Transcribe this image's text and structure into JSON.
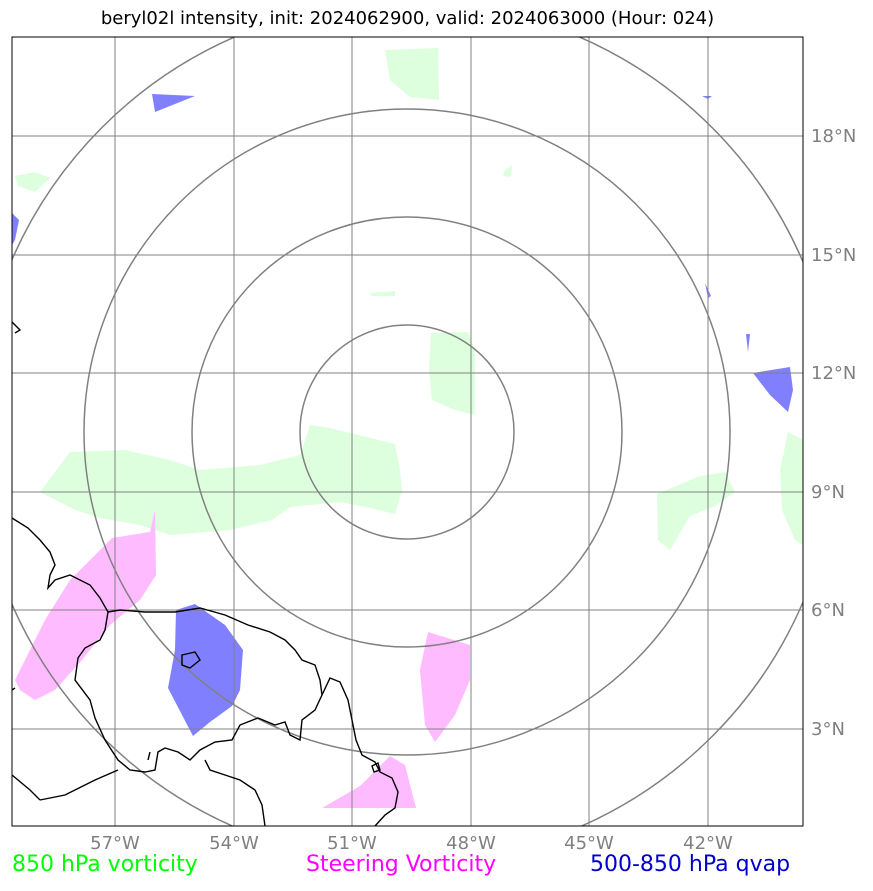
{
  "title": "beryl02l intensity, init: 2024062900, valid: 2024063000 (Hour: 024)",
  "lat_labels": [
    "18°N",
    "15°N",
    "12°N",
    "9°N",
    "6°N",
    "3°N"
  ],
  "lon_labels": [
    "57°W",
    "54°W",
    "51°W",
    "48°W",
    "45°W",
    "42°W"
  ],
  "legend": {
    "vorticity_850": "850 hPa vorticity",
    "steering_vorticity": "Steering Vorticity",
    "qvap_500_850": "500-850 hPa qvap"
  },
  "colors": {
    "vorticity_850": "#00ff00",
    "vorticity_850_fill": "#ddffdd",
    "steering_vorticity": "#ff00ff",
    "steering_fill": "#ffbbff",
    "qvap": "#0000cc",
    "qvap_fill": "#8080ff",
    "grid": "#808080",
    "range_rings": "#808080",
    "coastline": "#000000"
  }
}
